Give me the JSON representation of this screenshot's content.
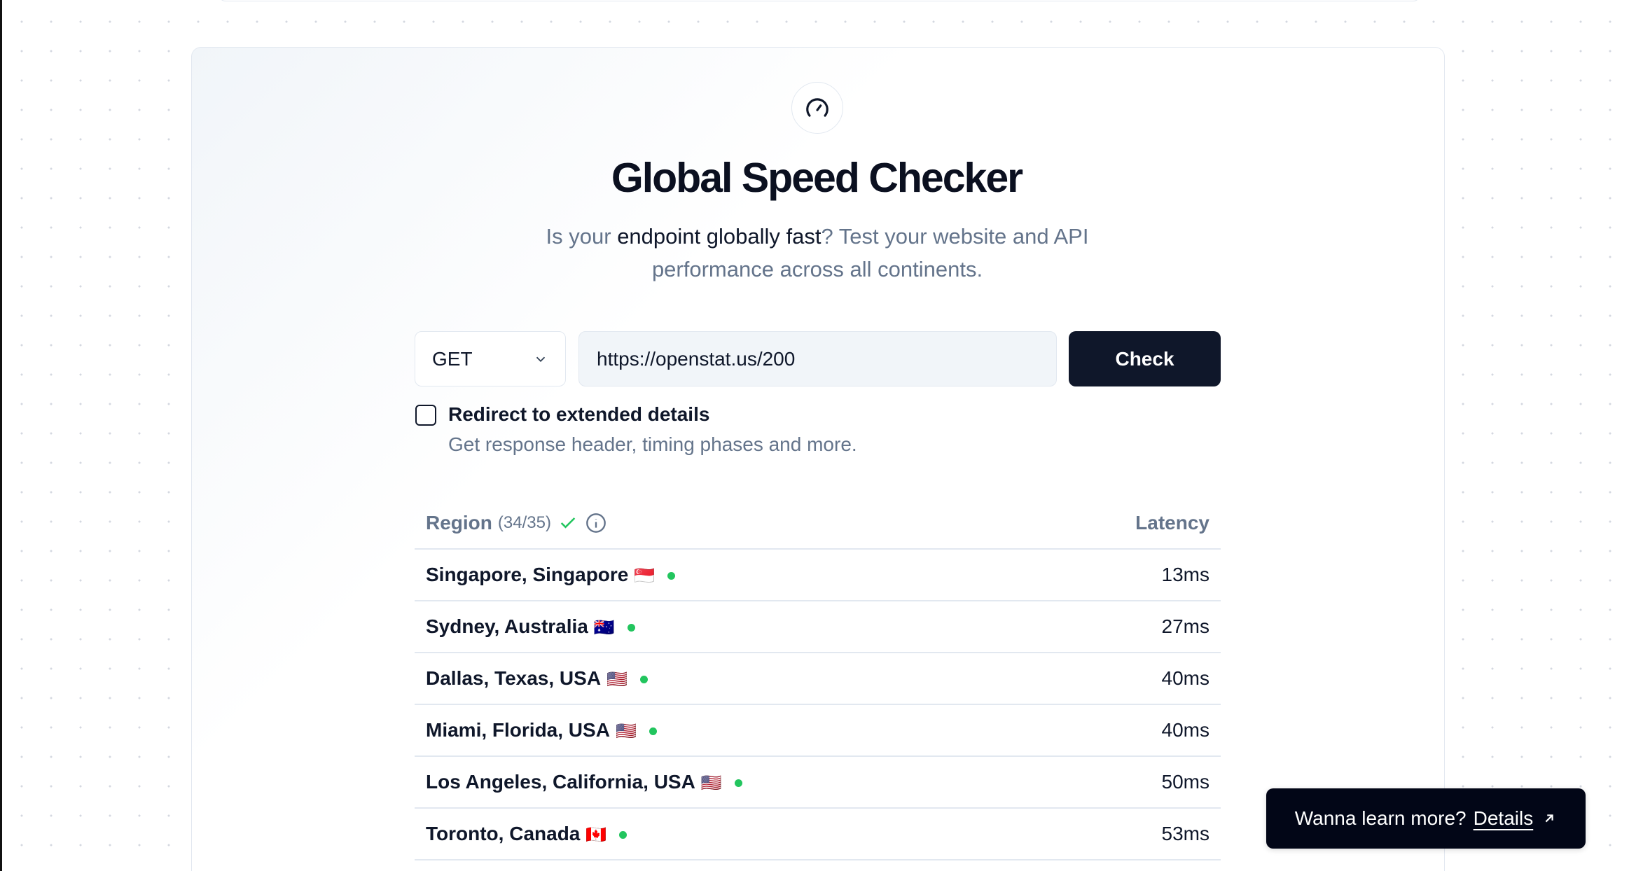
{
  "header": {
    "title": "Global Speed Checker",
    "subtitle_pre": "Is your ",
    "subtitle_hl": "endpoint globally fast",
    "subtitle_post": "? Test your website and API performance across all continents.",
    "icon": "gauge-icon"
  },
  "form": {
    "method": "GET",
    "url": "https://openstat.us/200",
    "check_label": "Check",
    "redirect_label": "Redirect to extended details",
    "redirect_desc": "Get response header, timing phases and more.",
    "redirect_checked": false
  },
  "table": {
    "region_header": "Region",
    "count": "(34/35)",
    "latency_header": "Latency",
    "rows": [
      {
        "region": "Singapore, Singapore",
        "flag": "🇸🇬",
        "latency": "13ms"
      },
      {
        "region": "Sydney, Australia",
        "flag": "🇦🇺",
        "latency": "27ms"
      },
      {
        "region": "Dallas, Texas, USA",
        "flag": "🇺🇸",
        "latency": "40ms"
      },
      {
        "region": "Miami, Florida, USA",
        "flag": "🇺🇸",
        "latency": "40ms"
      },
      {
        "region": "Los Angeles, California, USA",
        "flag": "🇺🇸",
        "latency": "50ms"
      },
      {
        "region": "Toronto, Canada",
        "flag": "🇨🇦",
        "latency": "53ms"
      }
    ]
  },
  "toast": {
    "text": "Wanna learn more?",
    "link": "Details"
  },
  "colors": {
    "status_ok": "#22c55e",
    "primary": "#0f172a",
    "muted": "#64748b"
  }
}
